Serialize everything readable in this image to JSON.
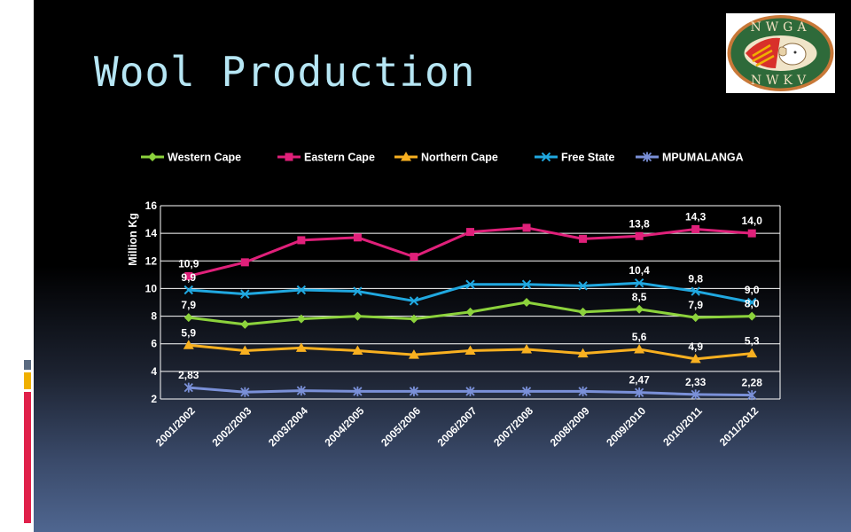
{
  "slide": {
    "title": "Wool Production",
    "logo": {
      "top_text": "NWGA",
      "bottom_text": "NWKV"
    },
    "accent_colors": [
      "#5a6a80",
      "#f0b000",
      "#e0204a"
    ]
  },
  "chart_data": {
    "type": "line",
    "title": "",
    "xlabel": "",
    "ylabel": "Million Kg",
    "ylim": [
      2,
      16
    ],
    "yticks": [
      2,
      4,
      6,
      8,
      10,
      12,
      14,
      16
    ],
    "grid": true,
    "legend": "top",
    "categories": [
      "2001/2002",
      "2002/2003",
      "2003/2004",
      "2004/2005",
      "2005/2006",
      "2006/2007",
      "2007/2008",
      "2008/2009",
      "2009/2010",
      "2010/2011",
      "2011/2012"
    ],
    "series": [
      {
        "name": "Western Cape",
        "color": "#8cd23c",
        "marker": "diamond",
        "values": [
          7.9,
          7.4,
          7.8,
          8.0,
          7.8,
          8.3,
          9.0,
          8.3,
          8.5,
          7.9,
          8.0
        ],
        "labels": [
          {
            "i": 0,
            "text": "7,9"
          },
          {
            "i": 8,
            "text": "8,5"
          },
          {
            "i": 9,
            "text": "7,9"
          },
          {
            "i": 10,
            "text": "8,0"
          }
        ]
      },
      {
        "name": "Eastern Cape",
        "color": "#e0207a",
        "marker": "square",
        "values": [
          10.9,
          11.9,
          13.5,
          13.7,
          12.3,
          14.1,
          14.4,
          13.6,
          13.8,
          14.3,
          14.0
        ],
        "labels": [
          {
            "i": 0,
            "text": "10,9"
          },
          {
            "i": 8,
            "text": "13,8"
          },
          {
            "i": 9,
            "text": "14,3"
          },
          {
            "i": 10,
            "text": "14,0"
          }
        ]
      },
      {
        "name": "Northern Cape",
        "color": "#f8b020",
        "marker": "triangle",
        "values": [
          5.9,
          5.5,
          5.7,
          5.5,
          5.2,
          5.5,
          5.6,
          5.3,
          5.6,
          4.9,
          5.3
        ],
        "labels": [
          {
            "i": 0,
            "text": "5,9"
          },
          {
            "i": 8,
            "text": "5,6"
          },
          {
            "i": 9,
            "text": "4,9"
          },
          {
            "i": 10,
            "text": "5,3"
          }
        ]
      },
      {
        "name": "Free State",
        "color": "#20a8e0",
        "marker": "x",
        "values": [
          9.9,
          9.6,
          9.9,
          9.8,
          9.1,
          10.3,
          10.3,
          10.2,
          10.4,
          9.8,
          9.0
        ],
        "labels": [
          {
            "i": 0,
            "text": "9,9"
          },
          {
            "i": 8,
            "text": "10,4"
          },
          {
            "i": 9,
            "text": "9,8"
          },
          {
            "i": 10,
            "text": "9,0"
          }
        ]
      },
      {
        "name": "MPUMALANGA",
        "color": "#7a90d8",
        "marker": "star",
        "values": [
          2.83,
          2.5,
          2.6,
          2.55,
          2.55,
          2.55,
          2.55,
          2.55,
          2.47,
          2.33,
          2.28
        ],
        "labels": [
          {
            "i": 0,
            "text": "2,83"
          },
          {
            "i": 8,
            "text": "2,47"
          },
          {
            "i": 9,
            "text": "2,33"
          },
          {
            "i": 10,
            "text": "2,28"
          }
        ]
      }
    ]
  }
}
